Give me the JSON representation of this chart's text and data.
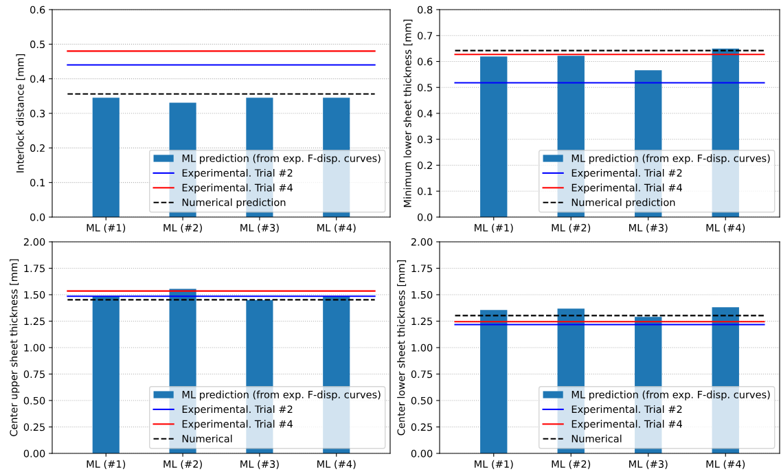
{
  "chart_data": [
    {
      "type": "bar",
      "ylabel": "Interlock distance [mm]",
      "categories": [
        "ML (#1)",
        "ML (#2)",
        "ML (#3)",
        "ML (#4)"
      ],
      "series": [
        {
          "name": "ML prediction (from exp. F-disp. curves)",
          "color": "#1f77b4",
          "values": [
            0.345,
            0.331,
            0.345,
            0.345
          ]
        }
      ],
      "ref_lines": [
        {
          "axis": "y",
          "value": 0.44,
          "label": "Experimental. Trial #2",
          "color": "#0000ff",
          "line_style": "solid"
        },
        {
          "axis": "y",
          "value": 0.48,
          "label": "Experimental. Trial #4",
          "color": "#ff0000",
          "line_style": "solid"
        },
        {
          "axis": "y",
          "value": 0.356,
          "label": "Numerical prediction",
          "color": "#000000",
          "line_style": "dashed"
        }
      ],
      "ylim": [
        0,
        0.6
      ],
      "yticks": [
        {
          "value": 0,
          "label": "0.0"
        },
        0.1,
        0.2,
        0.3,
        0.4,
        0.5,
        0.6
      ],
      "grid": "y",
      "legend": "bottom right"
    },
    {
      "type": "bar",
      "ylabel": "Minimum lower sheet thickness [mm]",
      "categories": [
        "ML (#1)",
        "ML (#2)",
        "ML (#3)",
        "ML (#4)"
      ],
      "series": [
        {
          "name": "ML prediction (from exp. F-disp. curves)",
          "color": "#1f77b4",
          "values": [
            0.619,
            0.622,
            0.566,
            0.65
          ]
        }
      ],
      "ref_lines": [
        {
          "axis": "y",
          "value": 0.518,
          "label": "Experimental. Trial #2",
          "color": "#0000ff",
          "line_style": "solid"
        },
        {
          "axis": "y",
          "value": 0.627,
          "label": "Experimental. Trial #4",
          "color": "#ff0000",
          "line_style": "solid"
        },
        {
          "axis": "y",
          "value": 0.642,
          "label": "Numerical prediction",
          "color": "#000000",
          "line_style": "dashed"
        }
      ],
      "ylim": [
        0,
        0.8
      ],
      "yticks": [
        {
          "value": 0,
          "label": "0.0"
        },
        0.1,
        0.2,
        0.3,
        0.4,
        0.5,
        0.6,
        0.7,
        0.8
      ],
      "grid": "y",
      "legend": "bottom right"
    },
    {
      "type": "bar",
      "ylabel": "Center upper sheet thickness [mm]",
      "categories": [
        "ML (#1)",
        "ML (#2)",
        "ML (#3)",
        "ML (#4)"
      ],
      "series": [
        {
          "name": "ML prediction (from exp. F-disp. curves)",
          "color": "#1f77b4",
          "values": [
            1.48,
            1.555,
            1.45,
            1.48
          ]
        }
      ],
      "ref_lines": [
        {
          "axis": "y",
          "value": 1.485,
          "label": "Experimental. Trial #2",
          "color": "#0000ff",
          "line_style": "solid"
        },
        {
          "axis": "y",
          "value": 1.535,
          "label": "Experimental. Trial #4",
          "color": "#ff0000",
          "line_style": "solid"
        },
        {
          "axis": "y",
          "value": 1.452,
          "label": "Numerical",
          "color": "#000000",
          "line_style": "dashed"
        }
      ],
      "ylim": [
        0,
        2
      ],
      "yticks": [
        {
          "value": 0,
          "label": "0.00"
        },
        {
          "value": 0.25,
          "label": "0.25"
        },
        {
          "value": 0.5,
          "label": "0.50"
        },
        {
          "value": 0.75,
          "label": "0.75"
        },
        {
          "value": 1,
          "label": "1.00"
        },
        {
          "value": 1.25,
          "label": "1.25"
        },
        {
          "value": 1.5,
          "label": "1.50"
        },
        {
          "value": 1.75,
          "label": "1.75"
        },
        {
          "value": 2,
          "label": "2.00"
        }
      ],
      "grid": "y",
      "legend": "bottom right"
    },
    {
      "type": "bar",
      "ylabel": "Center lower sheet thickness [mm]",
      "categories": [
        "ML (#1)",
        "ML (#2)",
        "ML (#3)",
        "ML (#4)"
      ],
      "series": [
        {
          "name": "ML prediction (from exp. F-disp. curves)",
          "color": "#1f77b4",
          "values": [
            1.356,
            1.369,
            1.29,
            1.382
          ]
        }
      ],
      "ref_lines": [
        {
          "axis": "y",
          "value": 1.217,
          "label": "Experimental. Trial #2",
          "color": "#0000ff",
          "line_style": "solid"
        },
        {
          "axis": "y",
          "value": 1.245,
          "label": "Experimental. Trial #4",
          "color": "#ff0000",
          "line_style": "solid"
        },
        {
          "axis": "y",
          "value": 1.303,
          "label": "Numerical",
          "color": "#000000",
          "line_style": "dashed"
        }
      ],
      "ylim": [
        0,
        2
      ],
      "yticks": [
        {
          "value": 0,
          "label": "0.00"
        },
        {
          "value": 0.25,
          "label": "0.25"
        },
        {
          "value": 0.5,
          "label": "0.50"
        },
        {
          "value": 0.75,
          "label": "0.75"
        },
        {
          "value": 1,
          "label": "1.00"
        },
        {
          "value": 1.25,
          "label": "1.25"
        },
        {
          "value": 1.5,
          "label": "1.50"
        },
        {
          "value": 1.75,
          "label": "1.75"
        },
        {
          "value": 2,
          "label": "2.00"
        }
      ],
      "grid": "y",
      "legend": "bottom right"
    }
  ]
}
